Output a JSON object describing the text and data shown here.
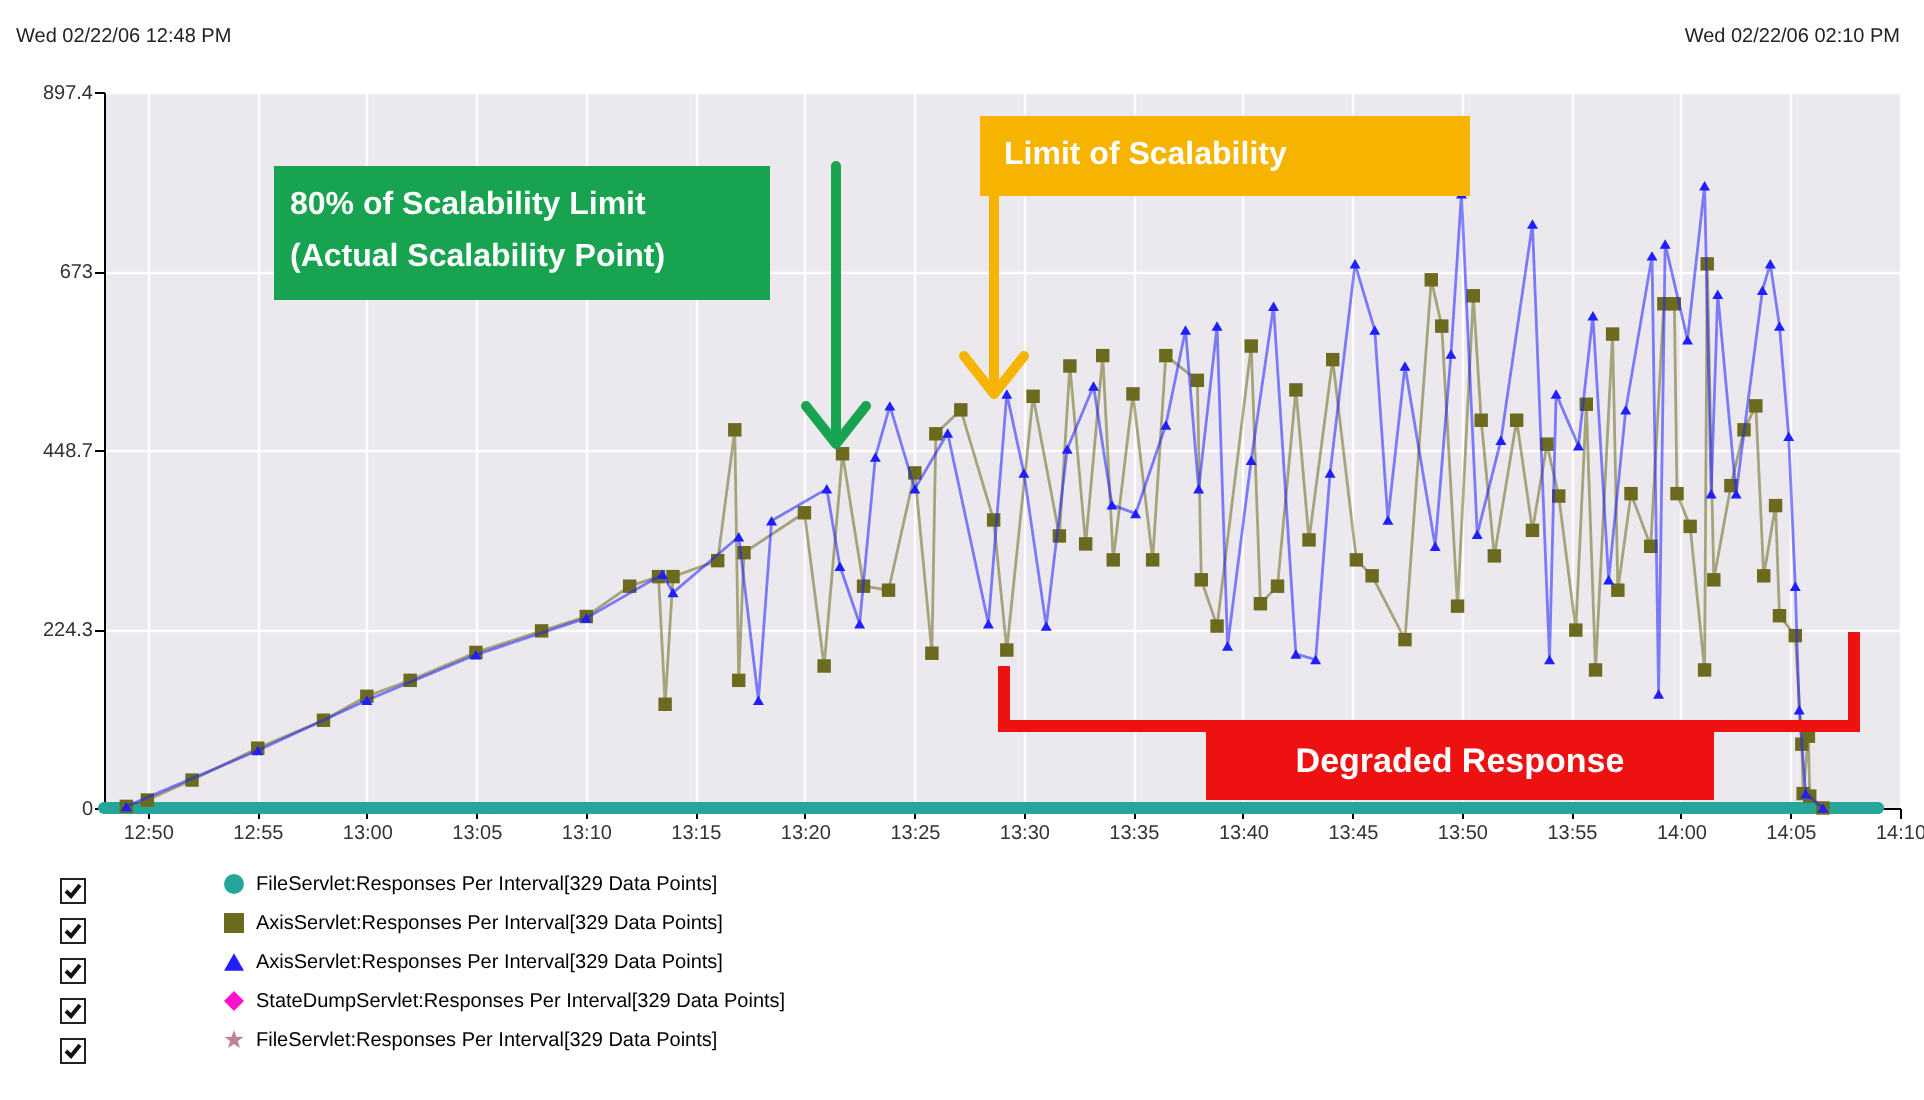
{
  "chart_data": {
    "type": "line",
    "annotations": [
      "Wed 02/22/06 12:48 PM",
      "Wed 02/22/06 02:10 PM",
      "80% of Scalability Limit\n(Actual Scalability Point)",
      "Limit of Scalability",
      "Degraded Response"
    ],
    "xlim": [
      12.8,
      14.1667
    ],
    "xticks": [
      {
        "value": 12.8333,
        "label": "12:50"
      },
      {
        "value": 12.9167,
        "label": "12:55"
      },
      {
        "value": 13,
        "label": "13:00"
      },
      {
        "value": 13.0833,
        "label": "13:05"
      },
      {
        "value": 13.1667,
        "label": "13:10"
      },
      {
        "value": 13.25,
        "label": "13:15"
      },
      {
        "value": 13.3333,
        "label": "13:20"
      },
      {
        "value": 13.4167,
        "label": "13:25"
      },
      {
        "value": 13.5,
        "label": "13:30"
      },
      {
        "value": 13.5833,
        "label": "13:35"
      },
      {
        "value": 13.6667,
        "label": "13:40"
      },
      {
        "value": 13.75,
        "label": "13:45"
      },
      {
        "value": 13.8333,
        "label": "13:50"
      },
      {
        "value": 13.9167,
        "label": "13:55"
      },
      {
        "value": 14,
        "label": "14:00"
      },
      {
        "value": 14.0833,
        "label": "14:05"
      },
      {
        "value": 14.1667,
        "label": "14:10"
      }
    ],
    "ylim": [
      0,
      897.4
    ],
    "yticks": [
      0,
      224.3,
      448.7,
      673,
      897.4
    ],
    "grid": true,
    "legend": "bottom",
    "series": [
      {
        "name": "FileServlet:Responses Per Interval[329 Data Points]",
        "color": "#26a69a",
        "marker": "circle",
        "x": [
          12.8,
          12.9,
          13.0,
          13.1,
          13.2,
          13.3,
          13.4,
          13.5,
          13.6,
          13.7,
          13.8,
          13.9,
          14.0,
          14.1,
          14.15
        ],
        "values": [
          0,
          0,
          0,
          0,
          0,
          0,
          0,
          0,
          0,
          0,
          0,
          0,
          0,
          0,
          0
        ]
      },
      {
        "name": "AxisServlet:Responses Per Interval[329 Data Points]",
        "color": "#6b6a1e",
        "marker": "square",
        "x": [
          12.817,
          12.833,
          12.867,
          12.917,
          12.967,
          13.0,
          13.033,
          13.083,
          13.133,
          13.167,
          13.2,
          13.222,
          13.227,
          13.233,
          13.267,
          13.28,
          13.283,
          13.287,
          13.333,
          13.348,
          13.362,
          13.378,
          13.397,
          13.417,
          13.43,
          13.433,
          13.452,
          13.477,
          13.487,
          13.507,
          13.527,
          13.535,
          13.547,
          13.56,
          13.568,
          13.583,
          13.598,
          13.608,
          13.632,
          13.635,
          13.647,
          13.673,
          13.68,
          13.693,
          13.707,
          13.717,
          13.735,
          13.753,
          13.765,
          13.79,
          13.81,
          13.818,
          13.83,
          13.842,
          13.848,
          13.858,
          13.875,
          13.887,
          13.898,
          13.907,
          13.92,
          13.928,
          13.935,
          13.948,
          13.952,
          13.962,
          13.977,
          13.987,
          13.995,
          13.997,
          14.007,
          14.018,
          14.02,
          14.025,
          14.038,
          14.048,
          14.057,
          14.063,
          14.072,
          14.075,
          14.087,
          14.092,
          14.093,
          14.097,
          14.098,
          14.108
        ],
        "values": [
          2,
          10,
          35,
          75,
          110,
          140,
          160,
          195,
          222,
          240,
          278,
          290,
          130,
          290,
          310,
          474,
          160,
          320,
          370,
          178,
          444,
          278,
          273,
          420,
          194,
          469,
          499,
          361,
          198,
          516,
          341,
          554,
          331,
          567,
          311,
          519,
          311,
          567,
          536,
          286,
          228,
          579,
          256,
          278,
          524,
          336,
          562,
          311,
          291,
          211,
          662,
          604,
          253,
          642,
          486,
          316,
          486,
          348,
          456,
          391,
          223,
          506,
          173,
          594,
          273,
          394,
          328,
          632,
          632,
          394,
          353,
          173,
          682,
          286,
          404,
          474,
          504,
          291,
          379,
          241,
          216,
          80,
          18,
          90,
          15,
          0
        ]
      },
      {
        "name": "AxisServlet:Responses Per Interval[329 Data Points]",
        "color": "#1f1fff",
        "marker": "triangle",
        "x": [
          12.817,
          12.917,
          13.0,
          13.083,
          13.167,
          13.225,
          13.233,
          13.283,
          13.298,
          13.308,
          13.35,
          13.36,
          13.375,
          13.387,
          13.398,
          13.417,
          13.442,
          13.473,
          13.487,
          13.5,
          13.517,
          13.533,
          13.553,
          13.567,
          13.585,
          13.608,
          13.623,
          13.633,
          13.647,
          13.655,
          13.673,
          13.69,
          13.707,
          13.722,
          13.733,
          13.752,
          13.767,
          13.777,
          13.79,
          13.813,
          13.825,
          13.833,
          13.845,
          13.863,
          13.887,
          13.9,
          13.905,
          13.922,
          13.933,
          13.945,
          13.958,
          13.978,
          13.983,
          13.988,
          14.005,
          14.018,
          14.023,
          14.028,
          14.042,
          14.062,
          14.068,
          14.075,
          14.082,
          14.087,
          14.09,
          14.095,
          14.108
        ],
        "values": [
          2,
          72,
          135,
          192,
          238,
          293,
          270,
          340,
          135,
          360,
          400,
          303,
          231,
          440,
          504,
          400,
          470,
          231,
          519,
          420,
          228,
          450,
          529,
          380,
          369,
          480,
          599,
          400,
          604,
          203,
          436,
          629,
          193,
          186,
          420,
          682,
          599,
          361,
          554,
          328,
          569,
          770,
          343,
          461,
          732,
          186,
          519,
          454,
          617,
          286,
          499,
          692,
          143,
          707,
          587,
          780,
          394,
          644,
          394,
          649,
          682,
          604,
          466,
          278,
          123,
          18,
          0
        ]
      },
      {
        "name": "StateDumpServlet:Responses Per Interval[329 Data Points]",
        "color": "#ff11cc",
        "marker": "diamond"
      },
      {
        "name": "FileServlet:Responses Per Interval[329 Data Points]",
        "color": "#c0809a",
        "marker": "star"
      }
    ]
  }
}
